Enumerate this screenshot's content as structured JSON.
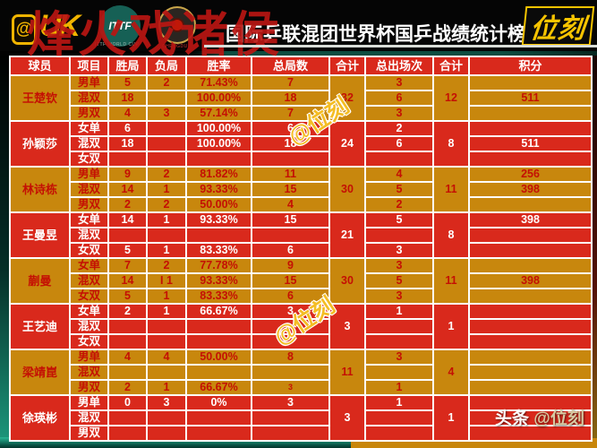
{
  "header": {
    "logo_left_at": "@",
    "logo_left_text": "UK",
    "red_watermark": "烽火戏诸侯",
    "ittf_label": "ITTF",
    "ittf_caption": "ITTF WORLD CUP",
    "chengdu_caption": "CHENGDU",
    "title": "国际乒联混团世界杯国乒战绩统计榜",
    "logo_right": "位刻"
  },
  "watermarks": {
    "diagonal": "@位刻",
    "footer_prefix": "头条",
    "footer_handle": "@位刻"
  },
  "colors": {
    "header_red": "#d9291c",
    "row_red": "#d9291c",
    "row_gold": "#c8870d",
    "gold_row_text": "#c41004",
    "grid": "#fdfdfd",
    "brand_yellow": "#f7c400",
    "watermark_gold": "#f4bd24",
    "teal": "#0c4c40",
    "footer_tan": "#d6c9a2",
    "red_watermark": "#ba1612"
  },
  "table": {
    "columns": [
      "球员",
      "项目",
      "胜局",
      "负局",
      "胜率",
      "总局数",
      "合计",
      "总出场次",
      "合计",
      "积分"
    ],
    "players": [
      {
        "name": "王楚钦",
        "theme": "gold",
        "total_games": "32",
        "total_appearances": "12",
        "rows": [
          {
            "event": "男单",
            "wins": "5",
            "losses": "2",
            "rate": "71.43%",
            "games": "7",
            "appearances": "3",
            "points": ""
          },
          {
            "event": "混双",
            "wins": "18",
            "losses": "",
            "rate": "100.00%",
            "games": "18",
            "appearances": "6",
            "points": "511"
          },
          {
            "event": "男双",
            "wins": "4",
            "losses": "3",
            "rate": "57.14%",
            "games": "7",
            "appearances": "3",
            "points": ""
          }
        ]
      },
      {
        "name": "孙颖莎",
        "theme": "red",
        "total_games": "24",
        "total_appearances": "8",
        "rows": [
          {
            "event": "女单",
            "wins": "6",
            "losses": "",
            "rate": "100.00%",
            "games": "6",
            "appearances": "2",
            "points": ""
          },
          {
            "event": "混双",
            "wins": "18",
            "losses": "",
            "rate": "100.00%",
            "games": "18",
            "appearances": "6",
            "points": "511"
          },
          {
            "event": "女双",
            "wins": "",
            "losses": "",
            "rate": "",
            "games": "",
            "appearances": "",
            "points": ""
          }
        ]
      },
      {
        "name": "林诗栋",
        "theme": "gold",
        "total_games": "30",
        "total_appearances": "11",
        "rows": [
          {
            "event": "男单",
            "wins": "9",
            "losses": "2",
            "rate": "81.82%",
            "games": "11",
            "appearances": "4",
            "points": "256"
          },
          {
            "event": "混双",
            "wins": "14",
            "losses": "1",
            "rate": "93.33%",
            "games": "15",
            "appearances": "5",
            "points": "398"
          },
          {
            "event": "男双",
            "wins": "2",
            "losses": "2",
            "rate": "50.00%",
            "games": "4",
            "appearances": "2",
            "points": ""
          }
        ]
      },
      {
        "name": "王曼昱",
        "theme": "red",
        "total_games": "21",
        "total_appearances": "8",
        "rows": [
          {
            "event": "女单",
            "wins": "14",
            "losses": "1",
            "rate": "93.33%",
            "games": "15",
            "appearances": "5",
            "points": "398"
          },
          {
            "event": "混双",
            "wins": "",
            "losses": "",
            "rate": "",
            "games": "",
            "appearances": "",
            "points": ""
          },
          {
            "event": "女双",
            "wins": "5",
            "losses": "1",
            "rate": "83.33%",
            "games": "6",
            "appearances": "3",
            "points": ""
          }
        ]
      },
      {
        "name": "蒯曼",
        "theme": "gold",
        "total_games": "30",
        "total_appearances": "11",
        "rows": [
          {
            "event": "女单",
            "wins": "7",
            "losses": "2",
            "rate": "77.78%",
            "games": "9",
            "appearances": "3",
            "points": ""
          },
          {
            "event": "混双",
            "wins": "14",
            "losses": "I 1",
            "rate": "93.33%",
            "games": "15",
            "appearances": "5",
            "points": "398"
          },
          {
            "event": "女双",
            "wins": "5",
            "losses": "1",
            "rate": "83.33%",
            "games": "6",
            "appearances": "3",
            "points": ""
          }
        ]
      },
      {
        "name": "王艺迪",
        "theme": "red",
        "total_games": "3",
        "total_appearances": "1",
        "rows": [
          {
            "event": "女单",
            "wins": "2",
            "losses": "1",
            "rate": "66.67%",
            "games": "3",
            "appearances": "1",
            "points": ""
          },
          {
            "event": "混双",
            "wins": "",
            "losses": "",
            "rate": "",
            "games": "",
            "appearances": "",
            "points": ""
          },
          {
            "event": "女双",
            "wins": "",
            "losses": "",
            "rate": "",
            "games": "",
            "appearances": "",
            "points": ""
          }
        ]
      },
      {
        "name": "梁靖崑",
        "theme": "gold",
        "total_games": "11",
        "total_appearances": "4",
        "rows": [
          {
            "event": "男单",
            "wins": "4",
            "losses": "4",
            "rate": "50.00%",
            "games": "8",
            "appearances": "3",
            "points": ""
          },
          {
            "event": "混双",
            "wins": "",
            "losses": "",
            "rate": "",
            "games": "",
            "appearances": "",
            "points": ""
          },
          {
            "event": "男双",
            "wins": "2",
            "losses": "1",
            "rate": "66.67%",
            "games": "3",
            "games_small": true,
            "appearances": "1",
            "points": ""
          }
        ]
      },
      {
        "name": "徐瑛彬",
        "theme": "red",
        "total_games": "3",
        "total_appearances": "1",
        "rows": [
          {
            "event": "男单",
            "wins": "0",
            "losses": "3",
            "rate": "0%",
            "games": "3",
            "appearances": "1",
            "points": ""
          },
          {
            "event": "混双",
            "wins": "",
            "losses": "",
            "rate": "",
            "games": "",
            "appearances": "",
            "points": ""
          },
          {
            "event": "男双",
            "wins": "",
            "losses": "",
            "rate": "",
            "games": "",
            "appearances": "",
            "points": ""
          }
        ]
      }
    ]
  },
  "chart_data": {
    "type": "table",
    "title": "国际乒联混团世界杯国乒战绩统计榜",
    "columns": [
      "球员",
      "项目",
      "胜局",
      "负局",
      "胜率",
      "总局数",
      "合计",
      "总出场次",
      "合计",
      "积分"
    ],
    "rows": [
      [
        "王楚钦",
        "男单",
        "5",
        "2",
        "71.43%",
        "7",
        "32",
        "3",
        "12",
        ""
      ],
      [
        "",
        "混双",
        "18",
        "",
        "100.00%",
        "18",
        "",
        "6",
        "",
        "511"
      ],
      [
        "",
        "男双",
        "4",
        "3",
        "57.14%",
        "7",
        "",
        "3",
        "",
        ""
      ],
      [
        "孙颖莎",
        "女单",
        "6",
        "",
        "100.00%",
        "6",
        "24",
        "2",
        "8",
        ""
      ],
      [
        "",
        "混双",
        "18",
        "",
        "100.00%",
        "18",
        "",
        "6",
        "",
        "511"
      ],
      [
        "",
        "女双",
        "",
        "",
        "",
        "",
        "",
        "",
        "",
        ""
      ],
      [
        "林诗栋",
        "男单",
        "9",
        "2",
        "81.82%",
        "11",
        "30",
        "4",
        "11",
        "256"
      ],
      [
        "",
        "混双",
        "14",
        "1",
        "93.33%",
        "15",
        "",
        "5",
        "",
        "398"
      ],
      [
        "",
        "男双",
        "2",
        "2",
        "50.00%",
        "4",
        "",
        "2",
        "",
        ""
      ],
      [
        "王曼昱",
        "女单",
        "14",
        "1",
        "93.33%",
        "15",
        "21",
        "5",
        "8",
        "398"
      ],
      [
        "",
        "混双",
        "",
        "",
        "",
        "",
        "",
        "",
        "",
        ""
      ],
      [
        "",
        "女双",
        "5",
        "1",
        "83.33%",
        "6",
        "",
        "3",
        "",
        ""
      ],
      [
        "蒯曼",
        "女单",
        "7",
        "2",
        "77.78%",
        "9",
        "30",
        "3",
        "11",
        ""
      ],
      [
        "",
        "混双",
        "14",
        "I 1",
        "93.33%",
        "15",
        "",
        "5",
        "",
        "398"
      ],
      [
        "",
        "女双",
        "5",
        "1",
        "83.33%",
        "6",
        "",
        "3",
        "",
        ""
      ],
      [
        "王艺迪",
        "女单",
        "2",
        "1",
        "66.67%",
        "3",
        "3",
        "1",
        "1",
        ""
      ],
      [
        "",
        "混双",
        "",
        "",
        "",
        "",
        "",
        "",
        "",
        ""
      ],
      [
        "",
        "女双",
        "",
        "",
        "",
        "",
        "",
        "",
        "",
        ""
      ],
      [
        "梁靖崑",
        "男单",
        "4",
        "4",
        "50.00%",
        "8",
        "11",
        "3",
        "4",
        ""
      ],
      [
        "",
        "混双",
        "",
        "",
        "",
        "",
        "",
        "",
        "",
        ""
      ],
      [
        "",
        "男双",
        "2",
        "1",
        "66.67%",
        "3",
        "",
        "1",
        "",
        ""
      ],
      [
        "徐瑛彬",
        "男单",
        "0",
        "3",
        "0%",
        "3",
        "3",
        "1",
        "1",
        ""
      ],
      [
        "",
        "混双",
        "",
        "",
        "",
        "",
        "",
        "",
        "",
        ""
      ],
      [
        "",
        "男双",
        "",
        "",
        "",
        "",
        "",
        "",
        "",
        ""
      ]
    ]
  }
}
